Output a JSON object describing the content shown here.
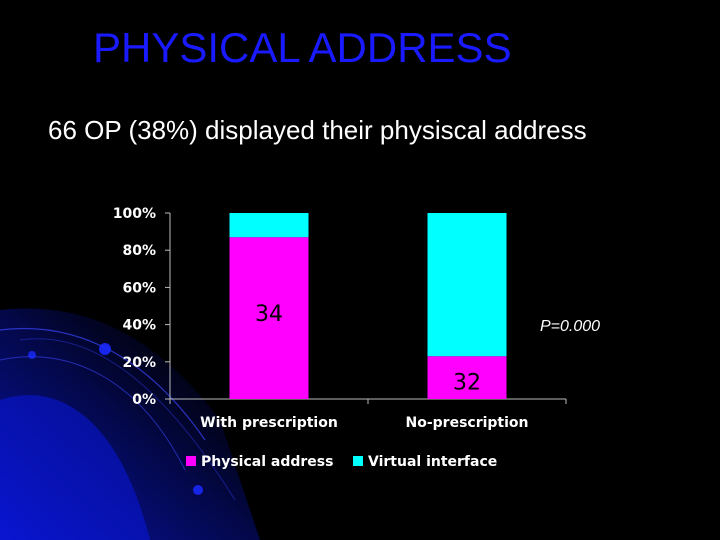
{
  "slide": {
    "title": "PHYSICAL ADDRESS",
    "subtitle": "66 OP (38%) displayed their physiscal address",
    "p_value": "P=0.000"
  },
  "colors": {
    "title": "#1a1aff",
    "physical": "#ff00ff",
    "virtual": "#00ffff",
    "background": "#000000"
  },
  "chart_data": {
    "type": "bar",
    "stacked": true,
    "categories": [
      "With prescription",
      "No-prescription"
    ],
    "series": [
      {
        "name": "Physical address",
        "values": [
          87,
          23
        ],
        "color": "#ff00ff"
      },
      {
        "name": "Virtual interface",
        "values": [
          13,
          77
        ],
        "color": "#00ffff"
      }
    ],
    "bar_labels": [
      "34",
      "32"
    ],
    "yticks": [
      "0%",
      "20%",
      "40%",
      "60%",
      "80%",
      "100%"
    ],
    "ylim": [
      0,
      100
    ],
    "legend": "bottom",
    "grid": false
  }
}
